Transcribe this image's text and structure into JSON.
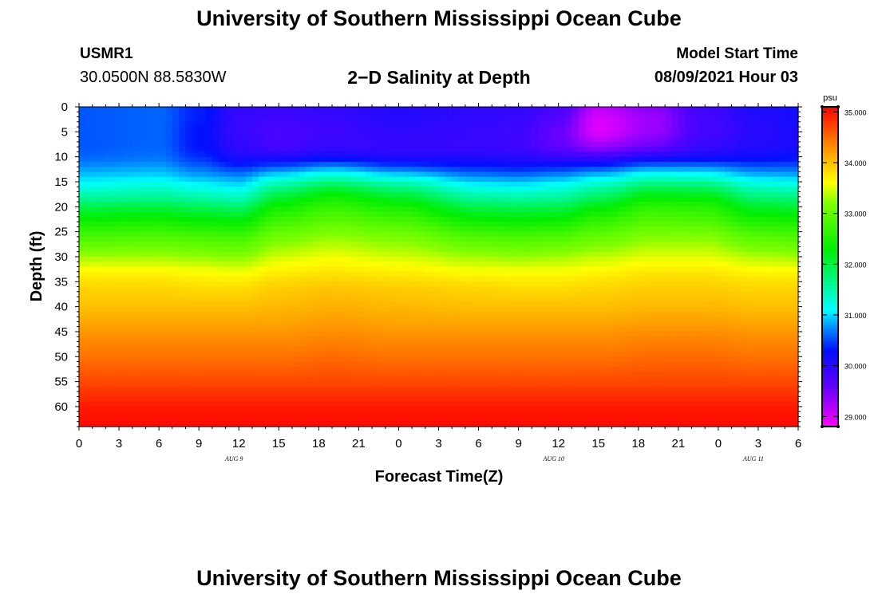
{
  "header": {
    "title": "University of Southern Mississippi Ocean Cube",
    "station_id": "USMR1",
    "coords": "30.0500N  88.5830W",
    "subtitle": "2−D Salinity at Depth",
    "model_start_label": "Model Start Time",
    "model_start_value": "08/09/2021 Hour 03"
  },
  "footer": {
    "title": "University of Southern Mississippi Ocean Cube"
  },
  "chart_data": {
    "type": "heatmap",
    "title": "2−D Salinity at Depth",
    "xlabel": "Forecast Time(Z)",
    "ylabel": "Depth (ft)",
    "x_ticks": [
      "0",
      "3",
      "6",
      "9",
      "12",
      "15",
      "18",
      "21",
      "0",
      "3",
      "6",
      "9",
      "12",
      "15",
      "18",
      "21",
      "0",
      "3",
      "6"
    ],
    "x_hours_range": [
      0,
      54
    ],
    "date_labels": [
      {
        "text": "AUG 9",
        "hour": 12
      },
      {
        "text": "AUG 10",
        "hour": 36
      },
      {
        "text": "AUG 11",
        "hour": 51
      }
    ],
    "y_ticks": [
      0,
      5,
      10,
      15,
      20,
      25,
      30,
      35,
      40,
      45,
      50,
      55,
      60
    ],
    "ylim": [
      0,
      64
    ],
    "colorbar": {
      "unit": "psu",
      "min": 28.8,
      "max": 35.1,
      "ticks": [
        "35.000",
        "34.000",
        "33.000",
        "32.000",
        "31.000",
        "30.000",
        "29.000"
      ],
      "stops": [
        {
          "value": 28.8,
          "color": "#ff00ff"
        },
        {
          "value": 29.6,
          "color": "#6000ff"
        },
        {
          "value": 30.3,
          "color": "#0010ff"
        },
        {
          "value": 30.7,
          "color": "#0080ff"
        },
        {
          "value": 31.1,
          "color": "#00ffff"
        },
        {
          "value": 32.3,
          "color": "#00ee00"
        },
        {
          "value": 33.2,
          "color": "#80ff00"
        },
        {
          "value": 33.6,
          "color": "#ffff00"
        },
        {
          "value": 34.2,
          "color": "#ffa000"
        },
        {
          "value": 35.1,
          "color": "#ff0000"
        }
      ]
    },
    "profile_depths_ft": [
      0,
      2,
      5,
      8,
      10,
      12,
      14,
      16,
      18,
      20,
      23,
      26,
      30,
      33,
      36,
      40,
      45,
      50,
      55,
      60,
      64
    ],
    "profiles": [
      {
        "hour": 0,
        "salinity": [
          30.55,
          30.55,
          30.55,
          30.55,
          30.6,
          30.75,
          30.95,
          31.2,
          31.55,
          31.95,
          32.4,
          32.8,
          33.3,
          33.65,
          33.85,
          34.0,
          34.25,
          34.45,
          34.7,
          34.95,
          35.05
        ]
      },
      {
        "hour": 6,
        "salinity": [
          30.6,
          30.6,
          30.6,
          30.6,
          30.65,
          30.8,
          31.0,
          31.3,
          31.6,
          32.0,
          32.45,
          32.85,
          33.3,
          33.65,
          33.85,
          34.0,
          34.25,
          34.45,
          34.7,
          34.95,
          35.05
        ]
      },
      {
        "hour": 9,
        "salinity": [
          30.35,
          30.35,
          30.3,
          30.3,
          30.4,
          30.6,
          30.85,
          31.15,
          31.5,
          31.9,
          32.35,
          32.8,
          33.25,
          33.6,
          33.8,
          34.0,
          34.25,
          34.45,
          34.7,
          34.95,
          35.05
        ]
      },
      {
        "hour": 12,
        "salinity": [
          29.95,
          29.9,
          29.9,
          29.95,
          30.1,
          30.4,
          30.75,
          31.05,
          31.4,
          31.8,
          32.3,
          32.75,
          33.2,
          33.55,
          33.8,
          34.0,
          34.25,
          34.45,
          34.7,
          34.95,
          35.05
        ]
      },
      {
        "hour": 15,
        "salinity": [
          29.9,
          29.85,
          29.75,
          29.8,
          30.05,
          30.55,
          31.1,
          31.6,
          32.05,
          32.4,
          32.75,
          33.1,
          33.45,
          33.7,
          33.9,
          34.05,
          34.25,
          34.45,
          34.7,
          34.95,
          35.05
        ]
      },
      {
        "hour": 19,
        "salinity": [
          29.95,
          29.9,
          29.85,
          29.9,
          30.15,
          30.75,
          31.35,
          31.95,
          32.4,
          32.65,
          32.95,
          33.25,
          33.55,
          33.75,
          33.95,
          34.1,
          34.3,
          34.5,
          34.7,
          34.95,
          35.05
        ]
      },
      {
        "hour": 24,
        "salinity": [
          30.05,
          30.05,
          29.95,
          29.9,
          30.05,
          30.5,
          31.1,
          31.65,
          32.1,
          32.45,
          32.8,
          33.15,
          33.45,
          33.7,
          33.9,
          34.05,
          34.25,
          34.45,
          34.7,
          34.95,
          35.05
        ]
      },
      {
        "hour": 30,
        "salinity": [
          29.95,
          29.95,
          29.9,
          29.9,
          30.05,
          30.35,
          30.75,
          31.15,
          31.55,
          31.95,
          32.4,
          32.85,
          33.3,
          33.6,
          33.85,
          34.0,
          34.25,
          34.45,
          34.7,
          34.95,
          35.05
        ]
      },
      {
        "hour": 33,
        "salinity": [
          29.95,
          29.9,
          29.85,
          29.85,
          30.0,
          30.3,
          30.7,
          31.1,
          31.5,
          31.9,
          32.35,
          32.8,
          33.25,
          33.6,
          33.8,
          34.0,
          34.25,
          34.45,
          34.7,
          34.95,
          35.05
        ]
      },
      {
        "hour": 36,
        "salinity": [
          29.8,
          29.7,
          29.55,
          29.6,
          29.9,
          30.35,
          30.8,
          31.2,
          31.55,
          31.95,
          32.4,
          32.85,
          33.3,
          33.6,
          33.8,
          34.0,
          34.25,
          34.45,
          34.7,
          34.95,
          35.05
        ]
      },
      {
        "hour": 39,
        "salinity": [
          29.15,
          29.0,
          28.95,
          29.3,
          29.85,
          30.45,
          31.0,
          31.45,
          31.85,
          32.25,
          32.65,
          33.0,
          33.4,
          33.65,
          33.85,
          34.0,
          34.25,
          34.45,
          34.7,
          34.95,
          35.05
        ]
      },
      {
        "hour": 43,
        "salinity": [
          29.4,
          29.3,
          29.3,
          29.55,
          30.05,
          30.7,
          31.3,
          31.85,
          32.3,
          32.6,
          32.9,
          33.2,
          33.5,
          33.75,
          33.9,
          34.05,
          34.3,
          34.5,
          34.7,
          34.95,
          35.05
        ]
      },
      {
        "hour": 47,
        "salinity": [
          29.85,
          29.8,
          29.8,
          29.9,
          30.15,
          30.7,
          31.25,
          31.8,
          32.25,
          32.55,
          32.85,
          33.2,
          33.5,
          33.75,
          33.9,
          34.05,
          34.3,
          34.5,
          34.7,
          34.95,
          35.05
        ]
      },
      {
        "hour": 51,
        "salinity": [
          30.1,
          30.05,
          30.0,
          30.05,
          30.2,
          30.55,
          30.95,
          31.35,
          31.75,
          32.1,
          32.5,
          32.9,
          33.35,
          33.65,
          33.85,
          34.0,
          34.25,
          34.45,
          34.7,
          34.95,
          35.05
        ]
      },
      {
        "hour": 54,
        "salinity": [
          30.15,
          30.15,
          30.1,
          30.1,
          30.25,
          30.55,
          30.9,
          31.3,
          31.7,
          32.05,
          32.45,
          32.85,
          33.3,
          33.65,
          33.85,
          34.0,
          34.25,
          34.45,
          34.7,
          34.95,
          35.05
        ]
      }
    ]
  }
}
